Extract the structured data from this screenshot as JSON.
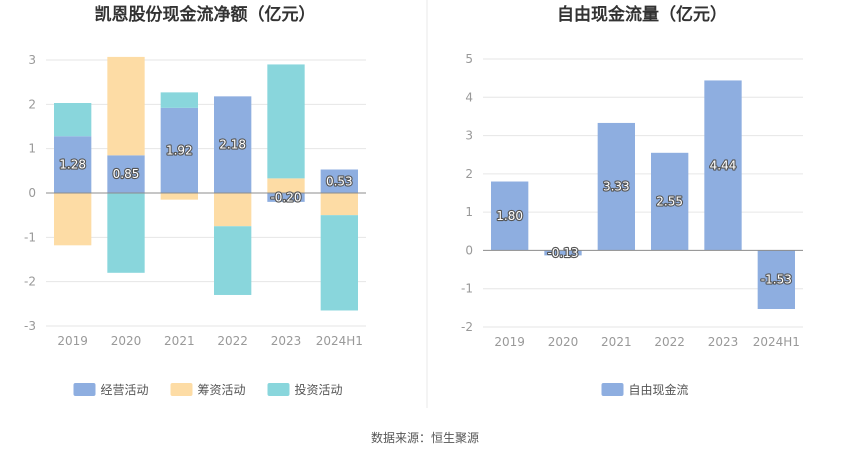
{
  "source": "数据来源：恒生聚源",
  "colors": {
    "operating": "#8eaee0",
    "financing": "#fddca5",
    "investing": "#89d6dc",
    "free_cash_flow": "#8eaee0",
    "grid": "#e6e6e6",
    "axis": "#8c8c8c",
    "divider": "#e8e8e8"
  },
  "chart_data": [
    {
      "type": "bar",
      "stacked": true,
      "title": "凯恩股份现金流净额（亿元）",
      "categories": [
        "2019",
        "2020",
        "2021",
        "2022",
        "2023",
        "2024H1"
      ],
      "ylim": [
        -3,
        3
      ],
      "yticks": [
        -3,
        -2,
        -1,
        0,
        1,
        2,
        3
      ],
      "grid": true,
      "legend_position": "bottom-center",
      "series": [
        {
          "name": "经营活动",
          "color_key": "operating",
          "values": [
            1.28,
            0.85,
            1.92,
            2.18,
            -0.2,
            0.53
          ],
          "labels": [
            "1.28",
            "0.85",
            "1.92",
            "2.18",
            "-0.20",
            "0.53"
          ]
        },
        {
          "name": "筹资活动",
          "color_key": "financing",
          "values": [
            -1.18,
            2.22,
            -0.15,
            -0.75,
            0.33,
            -0.5
          ]
        },
        {
          "name": "投资活动",
          "color_key": "investing",
          "values": [
            0.75,
            -1.8,
            0.35,
            -1.55,
            2.57,
            -2.15
          ]
        }
      ]
    },
    {
      "type": "bar",
      "stacked": false,
      "title": "自由现金流量（亿元）",
      "categories": [
        "2019",
        "2020",
        "2021",
        "2022",
        "2023",
        "2024H1"
      ],
      "ylim": [
        -2,
        5
      ],
      "yticks": [
        -2,
        -1,
        0,
        1,
        2,
        3,
        4,
        5
      ],
      "grid": true,
      "legend_position": "bottom-center",
      "series": [
        {
          "name": "自由现金流",
          "color_key": "free_cash_flow",
          "values": [
            1.8,
            -0.13,
            3.33,
            2.55,
            4.44,
            -1.53
          ],
          "labels": [
            "1.80",
            "-0.13",
            "3.33",
            "2.55",
            "4.44",
            "-1.53"
          ]
        }
      ]
    }
  ]
}
